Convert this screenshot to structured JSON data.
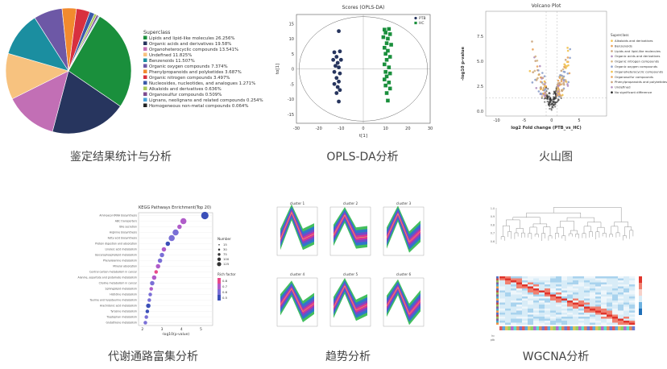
{
  "captions": {
    "pie": "鉴定结果统计与分析",
    "opls": "OPLS-DA分析",
    "volcano": "火山图",
    "kegg": "代谢通路富集分析",
    "trend": "趋势分析",
    "wgcna": "WGCNA分析"
  },
  "chart_data": [
    {
      "id": "pie",
      "type": "pie",
      "legend_title": "Superclass",
      "slices": [
        {
          "label": "Lipids and lipid-like molecules 26.256%",
          "value": 26.256,
          "color": "#1a8f3c"
        },
        {
          "label": "Organic acids and derivatives 19.58%",
          "value": 19.58,
          "color": "#27355e"
        },
        {
          "label": "Organoheterocyclic compounds 13.541%",
          "value": 13.541,
          "color": "#c26fb5"
        },
        {
          "label": "Undefined 11.825%",
          "value": 11.825,
          "color": "#f7c27f"
        },
        {
          "label": "Benzenoids 11.507%",
          "value": 11.507,
          "color": "#1b8ea0"
        },
        {
          "label": "Organic oxygen compounds 7.374%",
          "value": 7.374,
          "color": "#6d58a6"
        },
        {
          "label": "Phenylpropanoids and polyketides 3.687%",
          "value": 3.687,
          "color": "#f28a2e"
        },
        {
          "label": "Organic nitrogen compounds 3.497%",
          "value": 3.497,
          "color": "#d8303f"
        },
        {
          "label": "Nucleosides, nucleotides, and analogues 1.271%",
          "value": 1.271,
          "color": "#3b5aa8"
        },
        {
          "label": "Alkaloids and derivatives 0.636%",
          "value": 0.636,
          "color": "#a9c95a"
        },
        {
          "label": "Organosulfur compounds 0.509%",
          "value": 0.509,
          "color": "#7e4b8f"
        },
        {
          "label": "Lignans, neolignans and related compounds 0.254%",
          "value": 0.254,
          "color": "#4aa3d8"
        },
        {
          "label": "Homogeneous non-metal compounds 0.064%",
          "value": 0.064,
          "color": "#222222"
        }
      ]
    },
    {
      "id": "opls",
      "type": "scatter",
      "title": "Scores (OPLS-DA)",
      "xlabel": "t[1]",
      "ylabel": "to[1]",
      "xlim": [
        -30,
        30
      ],
      "ylim": [
        -18,
        18
      ],
      "xticks": [
        "-30",
        "-20",
        "-10",
        "0",
        "10",
        "20",
        "30"
      ],
      "yticks": [
        "15",
        "10",
        "5",
        "0",
        "-5",
        "-10",
        "-15"
      ],
      "series": [
        {
          "name": "PTB",
          "color": "#27355e",
          "marker": "circle",
          "points": [
            [
              -11,
              12.5
            ],
            [
              -13,
              5.5
            ],
            [
              -10.5,
              5.8
            ],
            [
              -12,
              4
            ],
            [
              -13.5,
              3
            ],
            [
              -10,
              3
            ],
            [
              -11.5,
              2
            ],
            [
              -12.5,
              1
            ],
            [
              -11,
              0.5
            ],
            [
              -13,
              -1
            ],
            [
              -10.5,
              -1.5
            ],
            [
              -12,
              -3
            ],
            [
              -11,
              -4.2
            ],
            [
              -13,
              -5
            ],
            [
              -11.5,
              -6
            ],
            [
              -10.5,
              -7
            ],
            [
              -12,
              -8
            ],
            [
              -11,
              -10.8
            ]
          ]
        },
        {
          "name": "HC",
          "color": "#1a8f3c",
          "marker": "square",
          "points": [
            [
              9.5,
              13
            ],
            [
              11.5,
              13.2
            ],
            [
              10,
              12
            ],
            [
              12,
              11.5
            ],
            [
              9,
              10.5
            ],
            [
              11,
              10
            ],
            [
              10.5,
              8.5
            ],
            [
              12.5,
              8
            ],
            [
              9.5,
              7
            ],
            [
              11,
              6
            ],
            [
              10,
              5
            ],
            [
              12,
              4
            ],
            [
              10.5,
              3
            ],
            [
              9.5,
              1.5
            ],
            [
              11.5,
              0.5
            ],
            [
              10,
              -1
            ],
            [
              12,
              -1.5
            ],
            [
              10.5,
              -2.5
            ],
            [
              9.5,
              -3.5
            ],
            [
              11.5,
              -4.5
            ],
            [
              10,
              -5.5
            ],
            [
              12,
              -6.5
            ],
            [
              10.5,
              -8
            ],
            [
              11,
              -10.5
            ]
          ]
        }
      ]
    },
    {
      "id": "volcano",
      "type": "scatter",
      "title": "Volcano Plot",
      "xlabel": "log2 Fold change (PTB_vs_HC)",
      "ylabel": "-log10 p-value",
      "xlim": [
        -12,
        10
      ],
      "ylim": [
        -0.5,
        10
      ],
      "xticks": [
        "-10",
        "-5",
        "0",
        "5"
      ],
      "yticks": [
        "0.0",
        "2.5",
        "5.0",
        "7.5"
      ],
      "legend_title": "Superclass",
      "legend": [
        "Alkaloids and derivatives",
        "Benzenoids",
        "Lipids and lipid-like molecules",
        "Organic acids and derivatives",
        "Organic nitrogen compounds",
        "Organic oxygen compounds",
        "Organoheterocyclic compounds",
        "Organosulfur compounds",
        "Phenylpropanoids and polyketides",
        "Undefined",
        "No significant difference"
      ]
    },
    {
      "id": "kegg",
      "type": "scatter",
      "title": "KEGG Pathways Enrichment(Top 20)",
      "xlabel": "-log10(p-value)",
      "xticks": [
        "2",
        "3",
        "4",
        "5"
      ],
      "size_legend_title": "Number",
      "size_legend": [
        "15",
        "30",
        "75",
        "100",
        "125"
      ],
      "color_legend_title": "Rich factor",
      "color_legend": [
        "0.8",
        "0.7",
        "0.6",
        "0.5"
      ],
      "pathways": [
        "Aminoacyl-tRNA biosynthesis",
        "ABC transporters",
        "Bile secretion",
        "Arginine biosynthesis",
        "Fatty acid biosynthesis",
        "Protein digestion and absorption",
        "Linoleic acid metabolism",
        "Glycerophospholipid metabolism",
        "Phenylalanine metabolism",
        "Mineral absorption",
        "Central carbon metabolism in cancer",
        "Alanine, aspartate and glutamate metabolism",
        "Choline metabolism in cancer",
        "Sphingolipid metabolism",
        "Histidine metabolism",
        "Taurine and hypotaurine metabolism",
        "Arachidonic acid metabolism",
        "Tyrosine metabolism",
        "Tryptophan metabolism",
        "Glutathione metabolism"
      ],
      "values": [
        5.2,
        4.1,
        3.9,
        3.7,
        3.5,
        3.3,
        3.1,
        3.0,
        2.9,
        2.8,
        2.7,
        2.6,
        2.5,
        2.45,
        2.4,
        2.35,
        2.3,
        2.25,
        2.2,
        2.15
      ],
      "sizes": [
        125,
        75,
        30,
        75,
        75,
        30,
        30,
        30,
        30,
        30,
        15,
        30,
        30,
        15,
        15,
        15,
        30,
        15,
        15,
        15
      ],
      "rich": [
        0.5,
        0.7,
        0.7,
        0.6,
        0.6,
        0.5,
        0.7,
        0.6,
        0.6,
        0.7,
        0.8,
        0.7,
        0.6,
        0.7,
        0.6,
        0.6,
        0.5,
        0.5,
        0.6,
        0.6
      ]
    },
    {
      "id": "trend",
      "type": "area",
      "clusters": [
        "cluster 1",
        "cluster 2",
        "cluster 3",
        "cluster 4",
        "cluster 5",
        "cluster 6"
      ],
      "profiles": [
        [
          -0.6,
          1.4,
          -0.6,
          -0.2
        ],
        [
          -0.3,
          1.2,
          -0.5,
          -0.4
        ],
        [
          -0.5,
          1.3,
          -0.8,
          0.0
        ],
        [
          -0.2,
          1.0,
          -0.7,
          -0.1
        ],
        [
          -0.4,
          1.2,
          -0.6,
          -0.2
        ],
        [
          -0.3,
          1.1,
          -0.9,
          0.1
        ]
      ]
    },
    {
      "id": "wgcna",
      "type": "heatmap",
      "description_labels": [
        "hc",
        "ptb"
      ]
    }
  ]
}
